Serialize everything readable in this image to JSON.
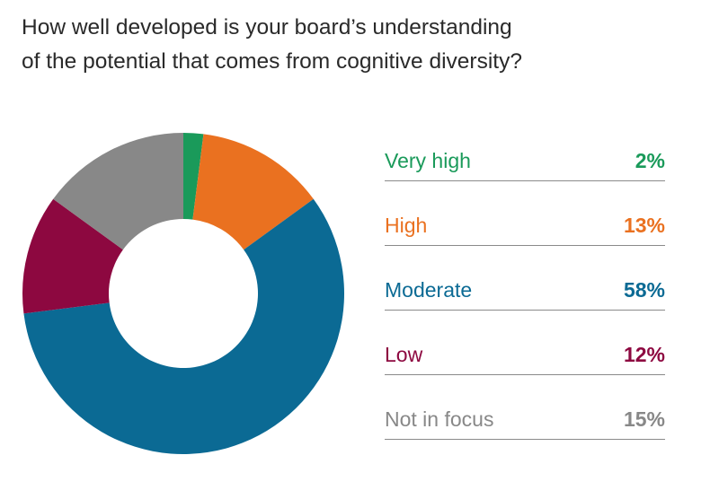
{
  "title": {
    "line1": "How well developed is your board’s understanding",
    "line2": "of the potential that comes from cognitive diversity?"
  },
  "chart_data": {
    "type": "donut",
    "categories": [
      "Very high",
      "High",
      "Moderate",
      "Low",
      "Not in focus"
    ],
    "values": [
      2,
      13,
      58,
      12,
      15
    ],
    "labels": [
      "2%",
      "13%",
      "58%",
      "12%",
      "15%"
    ],
    "colors": [
      "#1a9a5a",
      "#ea7120",
      "#0b6a94",
      "#8d0840",
      "#888888"
    ],
    "start": "top",
    "direction": "clockwise",
    "legend_position": "right"
  }
}
